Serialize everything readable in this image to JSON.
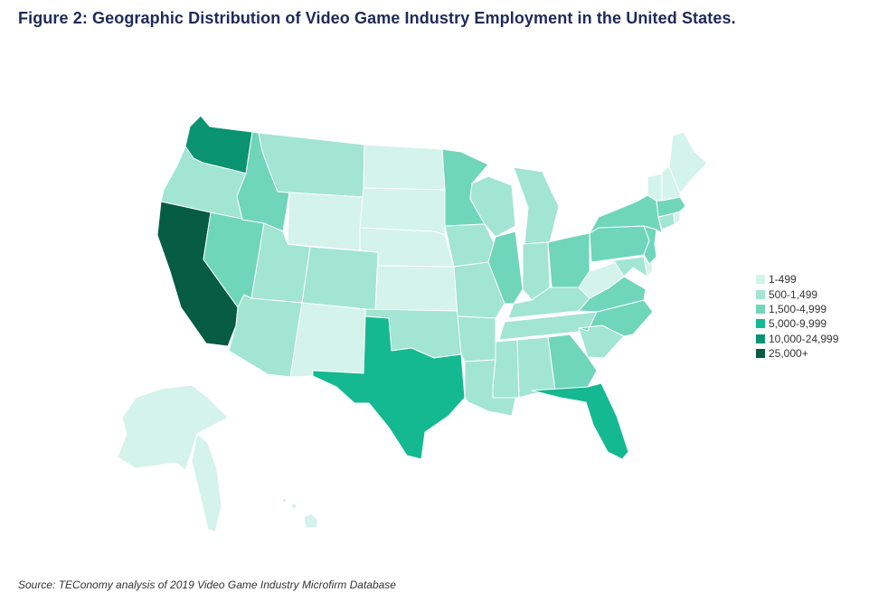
{
  "title": "Figure 2: Geographic Distribution of Video Game Industry Employment in the United States.",
  "source": "Source: TEConomy analysis of 2019 Video Game Industry Microfirm Database",
  "legend": [
    {
      "label": "1-499",
      "color": "#d4f3ea"
    },
    {
      "label": "500-1,499",
      "color": "#a2e5d2"
    },
    {
      "label": "1,500-4,999",
      "color": "#6fd6ba"
    },
    {
      "label": "5,000-9,999",
      "color": "#14b991"
    },
    {
      "label": "10,000-24,999",
      "color": "#0a9370"
    },
    {
      "label": "25,000+",
      "color": "#055c42"
    }
  ],
  "states": {
    "WA": 4,
    "OR": 1,
    "CA": 5,
    "NV": 2,
    "ID": 2,
    "MT": 1,
    "WY": 0,
    "UT": 1,
    "AZ": 1,
    "CO": 1,
    "NM": 0,
    "ND": 0,
    "SD": 0,
    "NE": 0,
    "KS": 0,
    "OK": 1,
    "TX": 3,
    "MN": 2,
    "IA": 1,
    "MO": 1,
    "AR": 1,
    "LA": 1,
    "WI": 1,
    "IL": 2,
    "MI": 1,
    "IN": 1,
    "OH": 2,
    "KY": 1,
    "TN": 1,
    "MS": 1,
    "AL": 1,
    "GA": 2,
    "FL": 3,
    "SC": 1,
    "NC": 2,
    "VA": 2,
    "WV": 0,
    "PA": 2,
    "NY": 2,
    "VT": 0,
    "NH": 0,
    "ME": 0,
    "MA": 2,
    "CT": 1,
    "RI": 0,
    "NJ": 2,
    "DE": 0,
    "MD": 1,
    "AK": 0,
    "HI": 0
  }
}
